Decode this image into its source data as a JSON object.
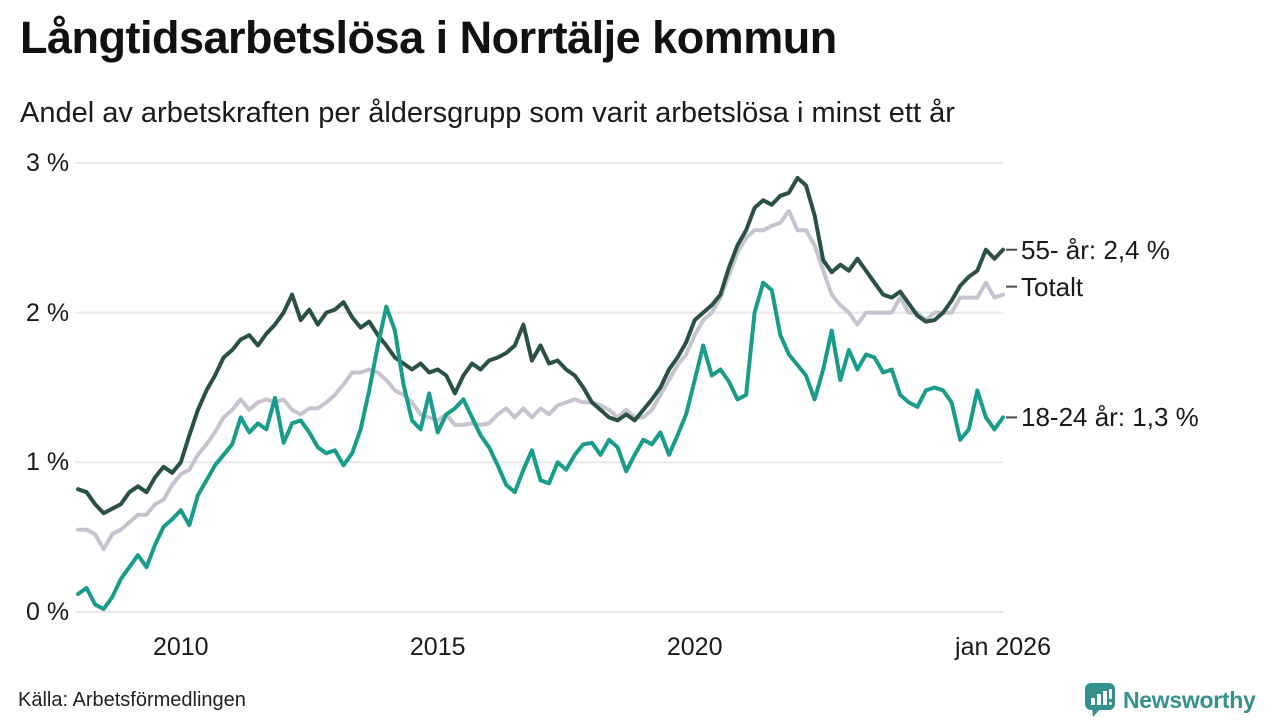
{
  "header": {
    "title": "Långtidsarbetslösa i Norrtälje kommun",
    "subtitle": "Andel av arbetskraften per åldersgrupp som varit arbetslösa i minst ett år"
  },
  "footer": {
    "source": "Källa: Arbetsförmedlingen",
    "brand": "Newsworthy"
  },
  "colors": {
    "series_55": "#2b5046",
    "series_total": "#c5c4cf",
    "series_18_24": "#1a9c8a",
    "grid": "#e8e8e8",
    "legend_dash": "#4a4a4a",
    "brand_teal": "#35918a",
    "text": "#1a1a1a"
  },
  "chart_data": {
    "type": "line",
    "title": "Långtidsarbetslösa i Norrtälje kommun",
    "subtitle": "Andel av arbetskraften per åldersgrupp som varit arbetslösa i minst ett år",
    "xlabel": "",
    "ylabel": "",
    "grid": "horizontal",
    "legend_position": "right-of-line-ends",
    "x_start": 2008.0,
    "x_end": 2026.0,
    "x_step_months": 2,
    "xlim": [
      2008.0,
      2026.05
    ],
    "ylim": [
      0,
      3
    ],
    "x_ticks": [
      {
        "label": "2010",
        "x": 2010
      },
      {
        "label": "2015",
        "x": 2015
      },
      {
        "label": "2020",
        "x": 2020
      },
      {
        "label": "jan 2026",
        "x": 2026
      }
    ],
    "y_ticks": [
      {
        "label": "3 %",
        "value": 3
      },
      {
        "label": "2 %",
        "value": 2
      },
      {
        "label": "1 %",
        "value": 1
      },
      {
        "label": "0 %",
        "value": 0
      }
    ],
    "series": [
      {
        "name": "55- år",
        "end_label": "55- år: 2,4 %",
        "end_value_text": "2,4 %",
        "color": "#2b5046",
        "values": [
          0.82,
          0.8,
          0.72,
          0.66,
          0.69,
          0.72,
          0.8,
          0.84,
          0.8,
          0.9,
          0.97,
          0.93,
          1.0,
          1.18,
          1.35,
          1.48,
          1.58,
          1.7,
          1.75,
          1.82,
          1.85,
          1.78,
          1.86,
          1.92,
          2.0,
          2.12,
          1.95,
          2.02,
          1.92,
          2.0,
          2.02,
          2.07,
          1.97,
          1.9,
          1.94,
          1.85,
          1.78,
          1.7,
          1.66,
          1.62,
          1.66,
          1.6,
          1.62,
          1.58,
          1.46,
          1.58,
          1.66,
          1.62,
          1.68,
          1.7,
          1.73,
          1.78,
          1.92,
          1.68,
          1.78,
          1.66,
          1.68,
          1.62,
          1.58,
          1.5,
          1.4,
          1.35,
          1.3,
          1.28,
          1.32,
          1.28,
          1.35,
          1.42,
          1.5,
          1.62,
          1.7,
          1.8,
          1.95,
          2.0,
          2.05,
          2.12,
          2.3,
          2.45,
          2.55,
          2.7,
          2.75,
          2.72,
          2.78,
          2.8,
          2.9,
          2.85,
          2.65,
          2.35,
          2.27,
          2.32,
          2.28,
          2.36,
          2.28,
          2.2,
          2.12,
          2.1,
          2.14,
          2.06,
          1.98,
          1.94,
          1.95,
          2.0,
          2.08,
          2.18,
          2.24,
          2.28,
          2.42,
          2.36,
          2.42
        ]
      },
      {
        "name": "Totalt",
        "end_label": "Totalt",
        "end_value_text": "",
        "color": "#c5c4cf",
        "values": [
          0.55,
          0.55,
          0.52,
          0.42,
          0.52,
          0.55,
          0.6,
          0.65,
          0.65,
          0.72,
          0.75,
          0.85,
          0.92,
          0.95,
          1.05,
          1.12,
          1.2,
          1.3,
          1.35,
          1.42,
          1.35,
          1.4,
          1.42,
          1.4,
          1.42,
          1.35,
          1.32,
          1.36,
          1.36,
          1.4,
          1.45,
          1.52,
          1.6,
          1.6,
          1.62,
          1.6,
          1.55,
          1.48,
          1.45,
          1.4,
          1.32,
          1.3,
          1.28,
          1.32,
          1.25,
          1.25,
          1.26,
          1.25,
          1.26,
          1.32,
          1.36,
          1.3,
          1.36,
          1.3,
          1.36,
          1.32,
          1.38,
          1.4,
          1.42,
          1.4,
          1.4,
          1.38,
          1.35,
          1.3,
          1.35,
          1.3,
          1.3,
          1.35,
          1.45,
          1.55,
          1.65,
          1.72,
          1.85,
          1.95,
          2.0,
          2.1,
          2.25,
          2.4,
          2.5,
          2.55,
          2.55,
          2.58,
          2.6,
          2.68,
          2.55,
          2.55,
          2.45,
          2.28,
          2.12,
          2.05,
          2.0,
          1.92,
          2.0,
          2.0,
          2.0,
          2.0,
          2.1,
          2.0,
          2.0,
          1.95,
          2.0,
          2.0,
          2.0,
          2.1,
          2.1,
          2.1,
          2.2,
          2.1,
          2.12
        ]
      },
      {
        "name": "18-24 år",
        "end_label": "18-24 år: 1,3 %",
        "end_value_text": "1,3 %",
        "color": "#1a9c8a",
        "values": [
          0.12,
          0.16,
          0.05,
          0.02,
          0.1,
          0.22,
          0.3,
          0.38,
          0.3,
          0.45,
          0.57,
          0.62,
          0.68,
          0.58,
          0.78,
          0.88,
          0.98,
          1.05,
          1.12,
          1.3,
          1.2,
          1.26,
          1.22,
          1.43,
          1.13,
          1.26,
          1.28,
          1.2,
          1.1,
          1.06,
          1.08,
          0.98,
          1.06,
          1.22,
          1.48,
          1.78,
          2.04,
          1.88,
          1.52,
          1.28,
          1.22,
          1.46,
          1.2,
          1.32,
          1.36,
          1.42,
          1.3,
          1.18,
          1.1,
          0.98,
          0.85,
          0.8,
          0.95,
          1.08,
          0.88,
          0.86,
          1.0,
          0.95,
          1.05,
          1.12,
          1.13,
          1.05,
          1.15,
          1.1,
          0.94,
          1.05,
          1.15,
          1.12,
          1.2,
          1.05,
          1.18,
          1.32,
          1.55,
          1.78,
          1.58,
          1.62,
          1.54,
          1.42,
          1.45,
          2.0,
          2.2,
          2.15,
          1.85,
          1.72,
          1.65,
          1.58,
          1.42,
          1.62,
          1.88,
          1.55,
          1.75,
          1.62,
          1.72,
          1.7,
          1.6,
          1.62,
          1.45,
          1.4,
          1.37,
          1.48,
          1.5,
          1.48,
          1.4,
          1.15,
          1.22,
          1.48,
          1.3,
          1.22,
          1.3
        ]
      }
    ],
    "source": "Källa: Arbetsförmedlingen"
  }
}
